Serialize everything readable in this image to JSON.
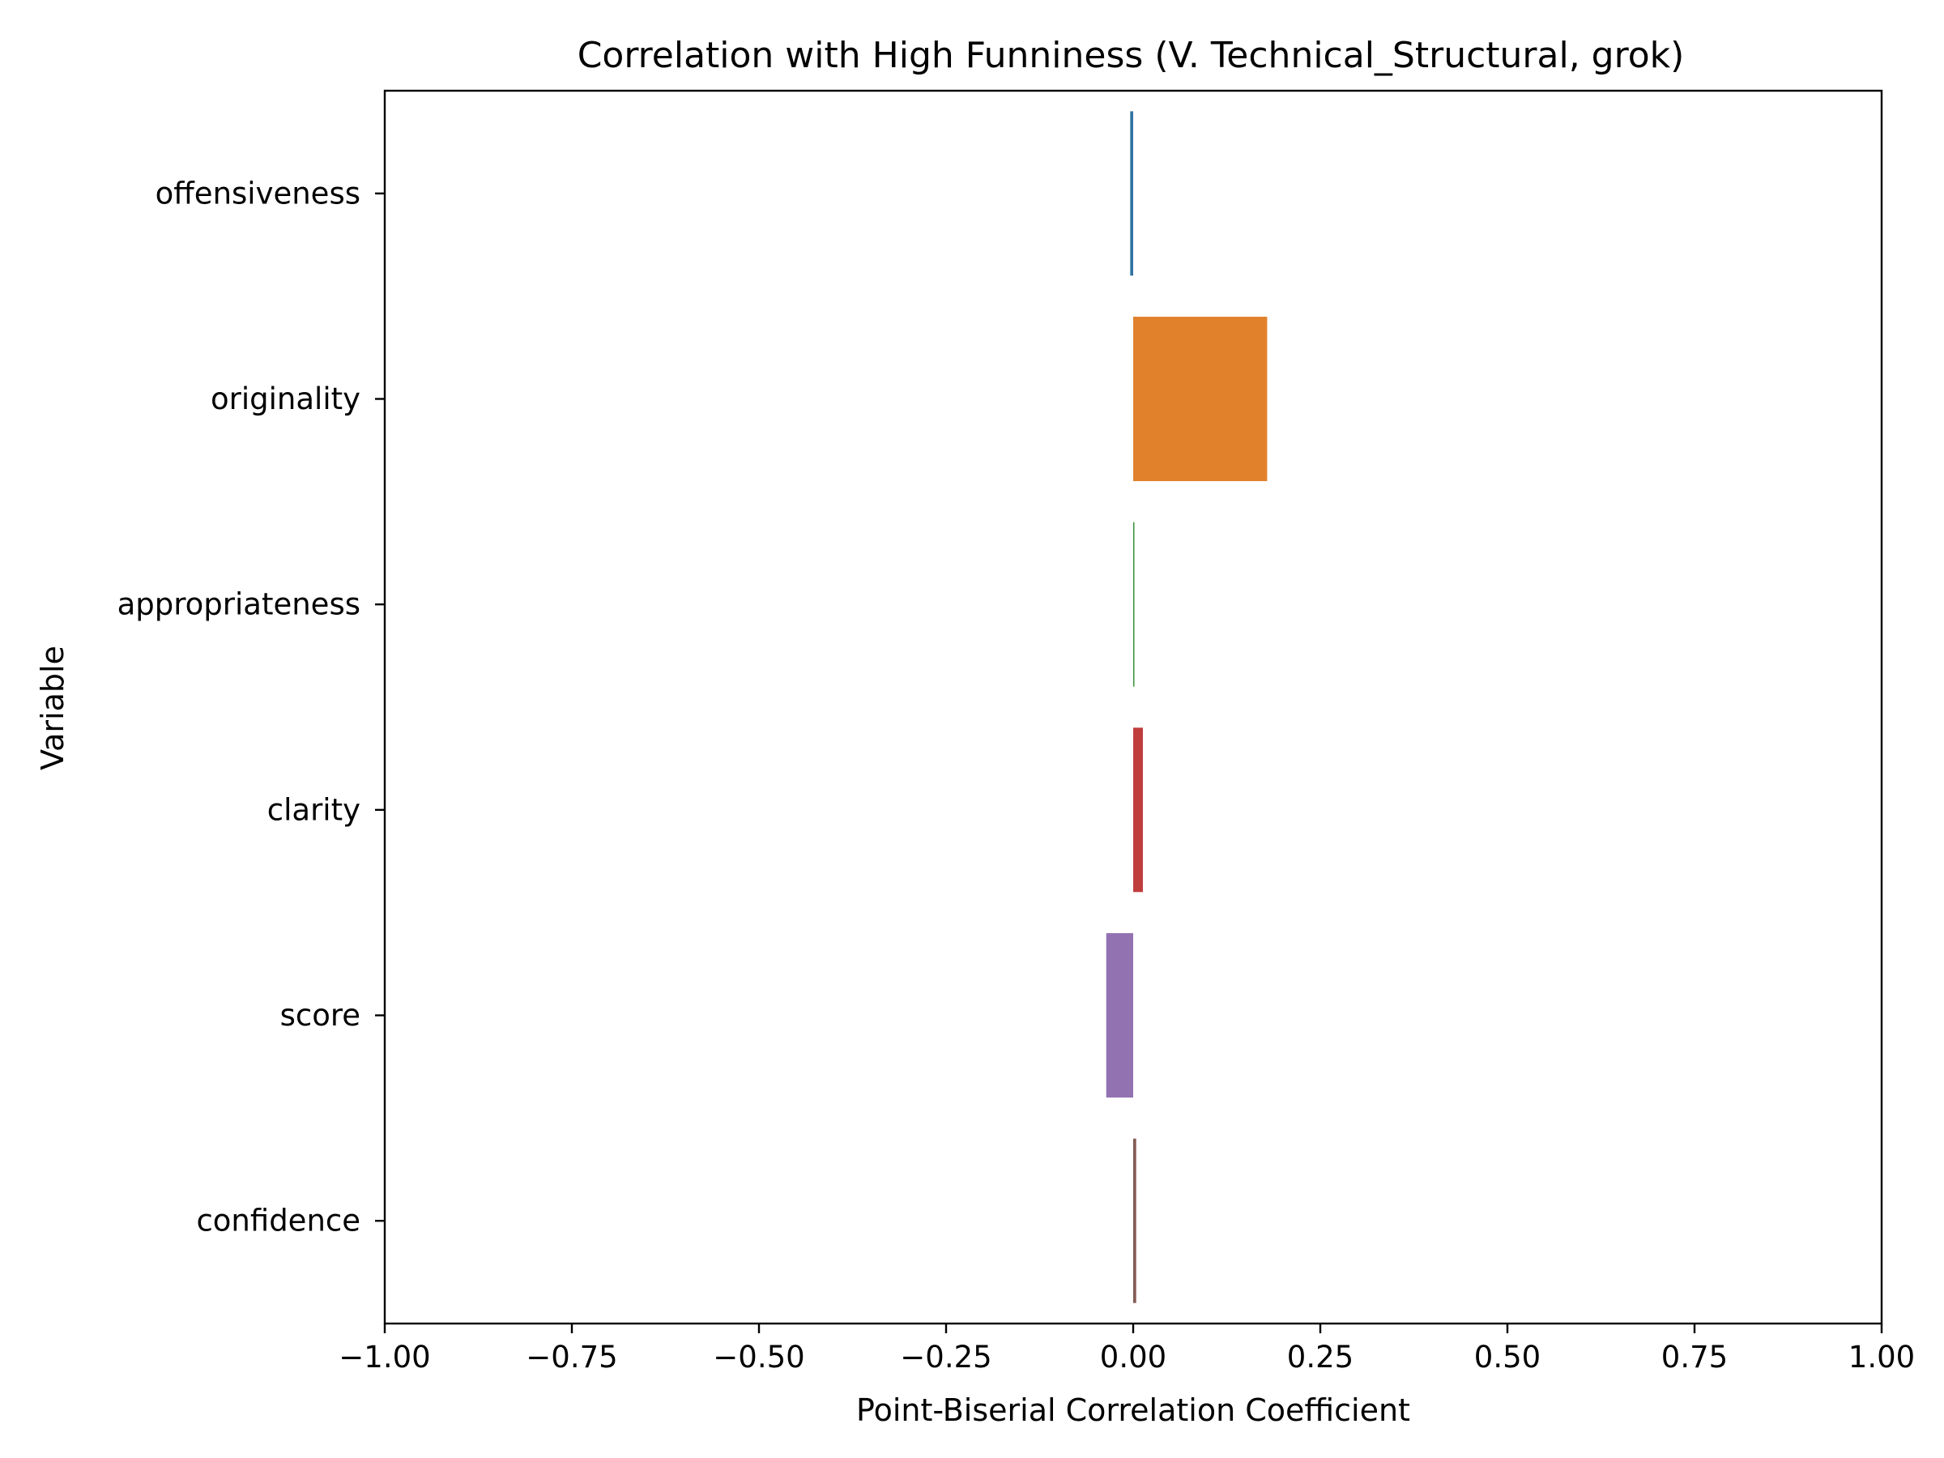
{
  "chart_data": {
    "type": "bar",
    "orientation": "horizontal",
    "title": "Correlation with High Funniness (V. Technical_Structural, grok)",
    "xlabel": "Point-Biserial Correlation Coefficient",
    "ylabel": "Variable",
    "xlim": [
      -1.0,
      1.0
    ],
    "xticks": [
      -1.0,
      -0.75,
      -0.5,
      -0.25,
      0.0,
      0.25,
      0.5,
      0.75,
      1.0
    ],
    "xtick_labels": [
      "−1.00",
      "−0.75",
      "−0.50",
      "−0.25",
      "0.00",
      "0.25",
      "0.50",
      "0.75",
      "1.00"
    ],
    "grid": false,
    "legend": false,
    "categories": [
      "offensiveness",
      "originality",
      "appropriateness",
      "clarity",
      "score",
      "confidence"
    ],
    "values": [
      -0.004,
      0.179,
      0.001,
      0.013,
      -0.036,
      0.004
    ],
    "colors": [
      "#3274a1",
      "#e1812c",
      "#3a923a",
      "#c03d3e",
      "#9372b2",
      "#845b53"
    ]
  }
}
